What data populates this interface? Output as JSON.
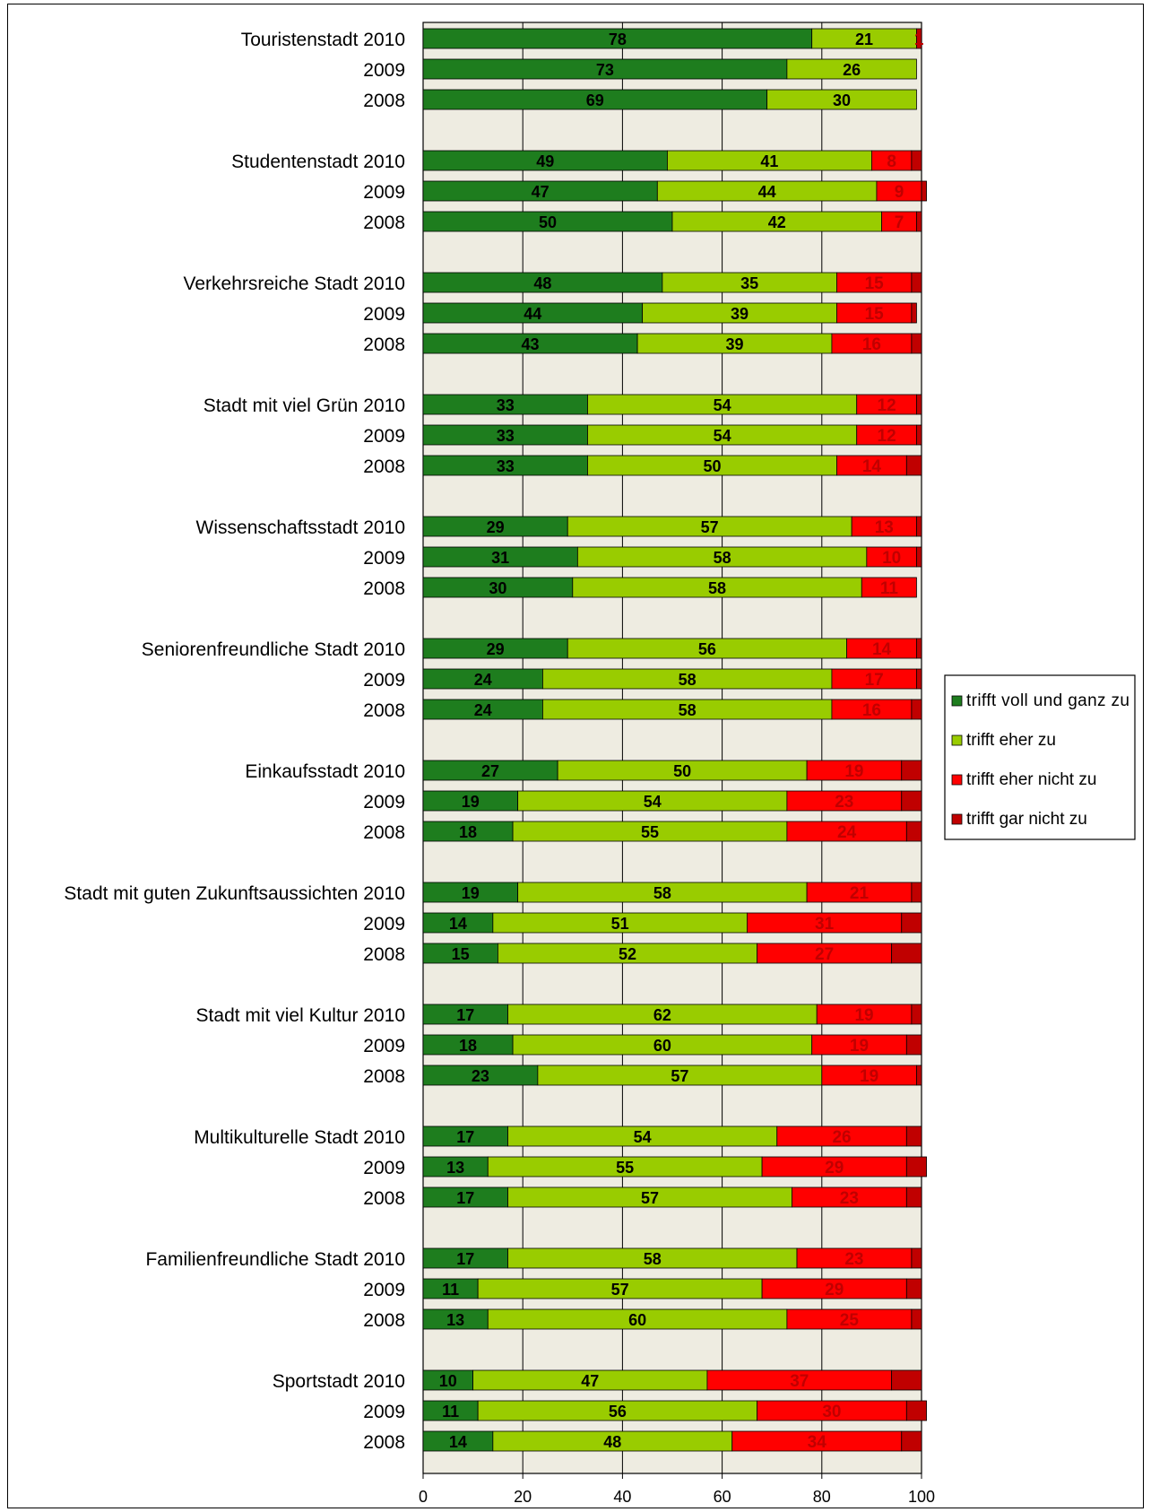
{
  "chart_data": {
    "type": "bar",
    "orientation": "horizontal",
    "stacked": true,
    "xlim": [
      0,
      100
    ],
    "x_ticks": [
      "0",
      "20",
      "40",
      "60",
      "80",
      "100"
    ],
    "xlabel": "",
    "ylabel": "",
    "title": "",
    "grid": true,
    "legend_position": "right",
    "categories": [
      "Touristenstadt 2010",
      "2009",
      "2008",
      "Studentenstadt 2010",
      "2009",
      "2008",
      "Verkehrsreiche  Stadt 2010",
      "2009",
      "2008",
      "Stadt mit viel Grün 2010",
      "2009",
      "2008",
      "Wissenschaftsstadt 2010",
      "2009",
      "2008",
      "Seniorenfreundliche Stadt 2010",
      "2009",
      "2008",
      "Einkaufsstadt 2010",
      "2009",
      "2008",
      "Stadt mit guten Zukunftsaussichten 2010",
      "2009",
      "2008",
      "Stadt mit viel Kultur 2010",
      "2009",
      "2008",
      "Multikulturelle  Stadt 2010",
      "2009",
      "2008",
      "Familienfreundliche Stadt 2010",
      "2009",
      "2008",
      "Sportstadt 2010",
      "2009",
      "2008"
    ],
    "series": [
      {
        "name": "trifft voll und ganz zu",
        "color": "#1e7d1e",
        "values": [
          78,
          73,
          69,
          49,
          47,
          50,
          48,
          44,
          43,
          33,
          33,
          33,
          29,
          31,
          30,
          29,
          24,
          24,
          27,
          19,
          18,
          19,
          14,
          15,
          17,
          18,
          23,
          17,
          13,
          17,
          17,
          11,
          13,
          10,
          11,
          14
        ],
        "labels": [
          "78",
          "73",
          "69",
          "49",
          "47",
          "50",
          "48",
          "44",
          "43",
          "33",
          "33",
          "33",
          "29",
          "31",
          "30",
          "29",
          "24",
          "24",
          "27",
          "19",
          "18",
          "19",
          "14",
          "15",
          "17",
          "18",
          "23",
          "17",
          "13",
          "17",
          "17",
          "11",
          "13",
          "10",
          "11",
          "14"
        ]
      },
      {
        "name": "trifft eher zu",
        "color": "#99cc00",
        "values": [
          21,
          26,
          30,
          41,
          44,
          42,
          35,
          39,
          39,
          54,
          54,
          50,
          57,
          58,
          58,
          56,
          58,
          58,
          50,
          54,
          55,
          58,
          51,
          52,
          62,
          60,
          57,
          54,
          55,
          57,
          58,
          57,
          60,
          47,
          56,
          48
        ],
        "labels": [
          "21",
          "26",
          "30",
          "41",
          "44",
          "42",
          "35",
          "39",
          "39",
          "54",
          "54",
          "50",
          "57",
          "58",
          "58",
          "56",
          "58",
          "58",
          "50",
          "54",
          "55",
          "58",
          "51",
          "52",
          "62",
          "60",
          "57",
          "54",
          "55",
          "57",
          "58",
          "57",
          "60",
          "47",
          "56",
          "48"
        ]
      },
      {
        "name": "trifft eher nicht zu",
        "color": "#ff0000",
        "values": [
          0,
          0,
          0,
          8,
          9,
          7,
          15,
          15,
          16,
          12,
          12,
          14,
          13,
          10,
          11,
          14,
          17,
          16,
          19,
          23,
          24,
          21,
          31,
          27,
          19,
          19,
          19,
          26,
          29,
          23,
          23,
          29,
          25,
          37,
          30,
          34
        ],
        "labels": [
          "",
          "",
          "",
          "8",
          "9",
          "7",
          "15",
          "15",
          "16",
          "12",
          "12",
          "14",
          "13",
          "10",
          "11",
          "14",
          "17",
          "16",
          "19",
          "23",
          "24",
          "21",
          "31",
          "27",
          "19",
          "19",
          "19",
          "26",
          "29",
          "23",
          "23",
          "29",
          "25",
          "37",
          "30",
          "34"
        ]
      },
      {
        "name": "trifft gar nicht zu",
        "color": "#c00000",
        "values": [
          1,
          0,
          0,
          2,
          1,
          1,
          2,
          1,
          2,
          1,
          1,
          3,
          1,
          1,
          0,
          1,
          1,
          2,
          4,
          4,
          3,
          2,
          4,
          6,
          2,
          3,
          1,
          3,
          4,
          3,
          2,
          3,
          2,
          6,
          4,
          4
        ],
        "labels": [
          "1",
          "",
          "",
          "",
          "",
          "",
          "",
          "",
          "",
          "",
          "",
          "",
          "",
          "",
          "",
          "",
          "",
          "",
          "",
          "",
          "",
          "",
          "",
          "",
          "",
          "",
          "",
          "",
          "",
          "",
          "",
          "",
          "",
          "",
          "",
          ""
        ]
      }
    ]
  }
}
